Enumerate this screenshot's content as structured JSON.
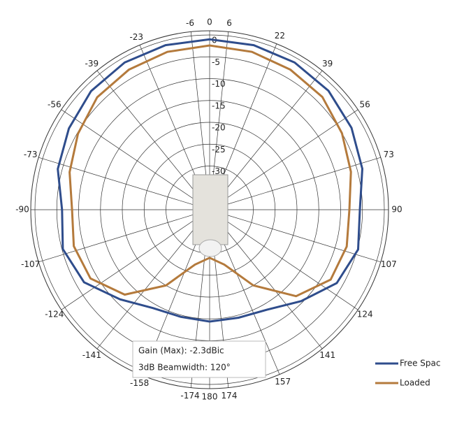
{
  "chart_data": {
    "type": "polar",
    "theta": [
      -180,
      -165,
      -150,
      -135,
      -120,
      -105,
      -90,
      -75,
      -60,
      -45,
      -30,
      -15,
      0,
      15,
      30,
      45,
      60,
      75,
      90,
      105,
      120,
      135,
      150,
      165,
      180
    ],
    "series": [
      {
        "name": "Free Spac",
        "color": "#2f4d8c",
        "values": [
          -14.4,
          -14.6,
          -14,
          -11,
          -6.8,
          -5.2,
          -6.2,
          -4,
          -2.8,
          -1.6,
          -1.1,
          -1,
          -1,
          -1,
          -1.1,
          -1.5,
          -2.5,
          -3.8,
          -5.6,
          -4.8,
          -6.4,
          -10.4,
          -13.6,
          -14.4,
          -14.4
        ]
      },
      {
        "name": "Loaded",
        "color": "#b47a3c",
        "values": [
          -29,
          -27,
          -20,
          -12.5,
          -8.5,
          -7.8,
          -8.5,
          -6.8,
          -5.2,
          -3.6,
          -3,
          -2.6,
          -2.4,
          -2.6,
          -3,
          -3.5,
          -5,
          -6.5,
          -8,
          -7.5,
          -8,
          -12,
          -20,
          -27,
          -29
        ]
      }
    ],
    "thetaticks": [
      0,
      6,
      22,
      39,
      56,
      73,
      90,
      107,
      124,
      141,
      157,
      174,
      180,
      -174,
      -158,
      -141,
      -124,
      -107,
      -90,
      -73,
      -56,
      -39,
      -23,
      -6
    ],
    "rlim": [
      -40,
      0
    ],
    "rticks": [
      0,
      -5,
      -10,
      -15,
      -20,
      -25,
      -30
    ],
    "annotations": [
      "Gain (Max):  -2.3dBic",
      "3dB Beamwidth:  120°"
    ],
    "grid": true,
    "legend": "lower right"
  }
}
